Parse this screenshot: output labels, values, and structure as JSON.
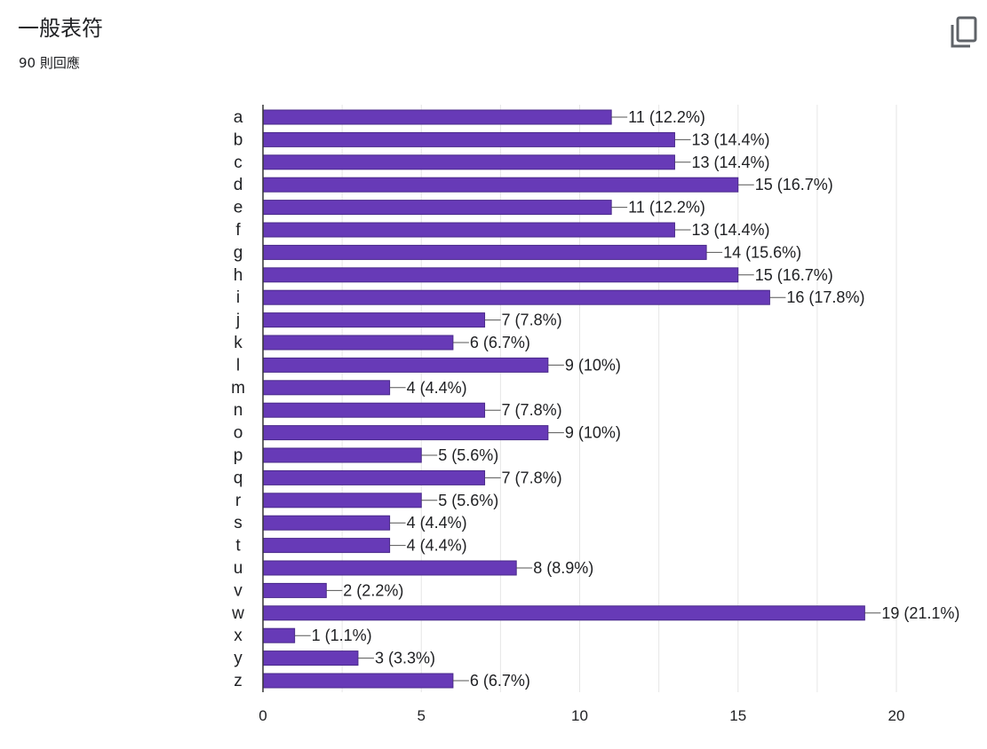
{
  "header": {
    "title": "一般表符",
    "response_count": "90 則回應"
  },
  "toolbar": {
    "copy_icon": "copy-icon"
  },
  "colors": {
    "bar": "#673ab7",
    "axis": "#333333",
    "grid": "#e6e6e6",
    "text": "#202124"
  },
  "chart_data": {
    "type": "bar",
    "orientation": "horizontal",
    "title": "",
    "xlabel": "",
    "ylabel": "",
    "xlim": [
      0,
      20
    ],
    "xticks": [
      0,
      5,
      10,
      15,
      20
    ],
    "grid": true,
    "categories": [
      "a",
      "b",
      "c",
      "d",
      "e",
      "f",
      "g",
      "h",
      "i",
      "j",
      "k",
      "l",
      "m",
      "n",
      "o",
      "p",
      "q",
      "r",
      "s",
      "t",
      "u",
      "v",
      "w",
      "x",
      "y",
      "z"
    ],
    "values": [
      11,
      13,
      13,
      15,
      11,
      13,
      14,
      15,
      16,
      7,
      6,
      9,
      4,
      7,
      9,
      5,
      7,
      5,
      4,
      4,
      8,
      2,
      19,
      1,
      3,
      6
    ],
    "data_labels": [
      "11 (12.2%)",
      "13 (14.4%)",
      "13 (14.4%)",
      "15 (16.7%)",
      "11 (12.2%)",
      "13 (14.4%)",
      "14 (15.6%)",
      "15 (16.7%)",
      "16 (17.8%)",
      "7 (7.8%)",
      "6 (6.7%)",
      "9 (10%)",
      "4 (4.4%)",
      "7 (7.8%)",
      "9 (10%)",
      "5 (5.6%)",
      "7 (7.8%)",
      "5 (5.6%)",
      "4 (4.4%)",
      "4 (4.4%)",
      "8 (8.9%)",
      "2 (2.2%)",
      "19 (21.1%)",
      "1 (1.1%)",
      "3 (3.3%)",
      "6 (6.7%)"
    ]
  }
}
